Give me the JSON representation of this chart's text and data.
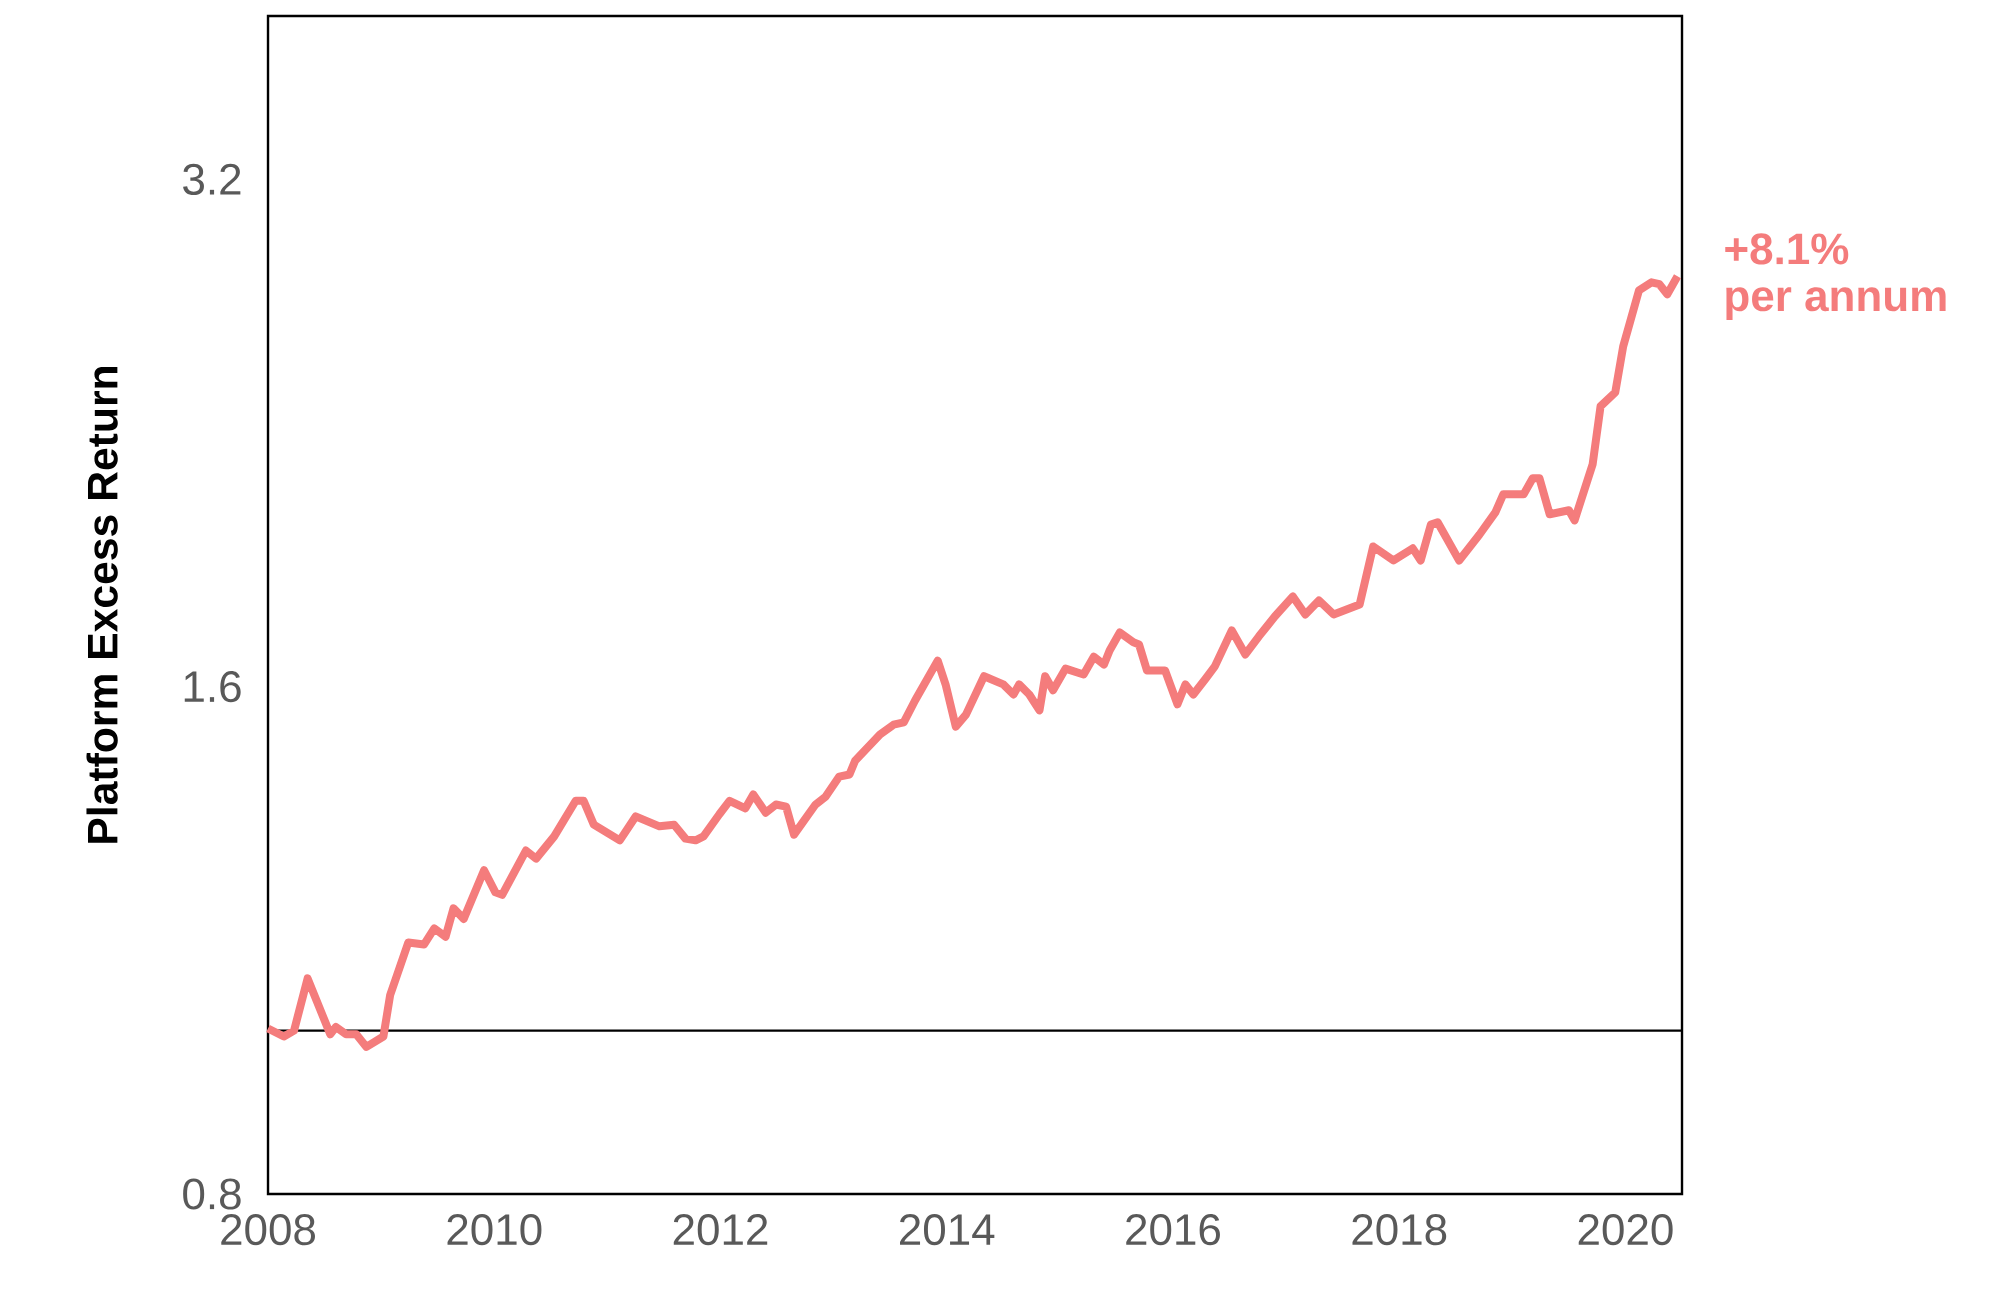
{
  "chart_data": {
    "type": "line",
    "ylabel": "Platform Excess Return",
    "log": "y",
    "xlim": [
      2008,
      2020.5
    ],
    "xticks": [
      2008,
      2010,
      2012,
      2014,
      2016,
      2018,
      2020
    ],
    "ylim": [
      0.8,
      4.0
    ],
    "yticks": [
      0.8,
      1.6,
      3.2
    ],
    "marker": "none",
    "line_style": "solid",
    "ref_lines": [
      {
        "axis": "y",
        "value": 1,
        "color": "#000000"
      }
    ],
    "annotations": [
      "+8.1%",
      "per annum"
    ],
    "series": [
      {
        "color": "#f47c7c",
        "x": [
          2008.0,
          2008.14,
          2008.23,
          2008.35,
          2008.55,
          2008.6,
          2008.69,
          2008.78,
          2008.87,
          2009.02,
          2009.08,
          2009.24,
          2009.38,
          2009.47,
          2009.57,
          2009.64,
          2009.73,
          2009.91,
          2010.01,
          2010.07,
          2010.28,
          2010.37,
          2010.53,
          2010.72,
          2010.79,
          2010.88,
          2011.11,
          2011.25,
          2011.46,
          2011.59,
          2011.69,
          2011.78,
          2011.85,
          2011.99,
          2012.08,
          2012.22,
          2012.29,
          2012.4,
          2012.49,
          2012.58,
          2012.65,
          2012.84,
          2012.93,
          2013.05,
          2013.14,
          2013.19,
          2013.41,
          2013.53,
          2013.62,
          2013.72,
          2013.92,
          2013.99,
          2014.08,
          2014.17,
          2014.33,
          2014.5,
          2014.59,
          2014.64,
          2014.73,
          2014.82,
          2014.87,
          2014.94,
          2015.05,
          2015.21,
          2015.3,
          2015.39,
          2015.44,
          2015.53,
          2015.65,
          2015.7,
          2015.77,
          2015.93,
          2016.04,
          2016.11,
          2016.18,
          2016.29,
          2016.37,
          2016.52,
          2016.64,
          2016.76,
          2016.9,
          2017.06,
          2017.17,
          2017.29,
          2017.42,
          2017.65,
          2017.77,
          2017.95,
          2018.12,
          2018.19,
          2018.28,
          2018.34,
          2018.53,
          2018.71,
          2018.85,
          2018.92,
          2019.1,
          2019.18,
          2019.24,
          2019.33,
          2019.5,
          2019.55,
          2019.71,
          2019.78,
          2019.91,
          2019.98,
          2020.12,
          2020.23,
          2020.3,
          2020.37,
          2020.46
        ],
        "values": [
          1.003,
          0.992,
          1.0,
          1.074,
          0.995,
          1.005,
          0.995,
          0.995,
          0.978,
          0.992,
          1.05,
          1.128,
          1.125,
          1.15,
          1.137,
          1.182,
          1.165,
          1.245,
          1.208,
          1.204,
          1.279,
          1.265,
          1.304,
          1.369,
          1.369,
          1.325,
          1.297,
          1.34,
          1.322,
          1.325,
          1.3,
          1.297,
          1.304,
          1.344,
          1.369,
          1.355,
          1.381,
          1.347,
          1.362,
          1.358,
          1.307,
          1.362,
          1.377,
          1.415,
          1.419,
          1.446,
          1.499,
          1.519,
          1.524,
          1.57,
          1.658,
          1.605,
          1.515,
          1.54,
          1.623,
          1.605,
          1.583,
          1.605,
          1.583,
          1.549,
          1.623,
          1.592,
          1.64,
          1.627,
          1.667,
          1.649,
          1.681,
          1.723,
          1.7,
          1.695,
          1.636,
          1.636,
          1.562,
          1.605,
          1.583,
          1.618,
          1.645,
          1.728,
          1.672,
          1.714,
          1.761,
          1.81,
          1.766,
          1.8,
          1.766,
          1.79,
          1.938,
          1.901,
          1.933,
          1.901,
          1.997,
          2.003,
          1.901,
          1.97,
          2.03,
          2.081,
          2.081,
          2.127,
          2.127,
          2.025,
          2.036,
          2.008,
          2.168,
          2.347,
          2.392,
          2.547,
          2.75,
          2.78,
          2.773,
          2.735,
          2.803
        ]
      }
    ]
  }
}
